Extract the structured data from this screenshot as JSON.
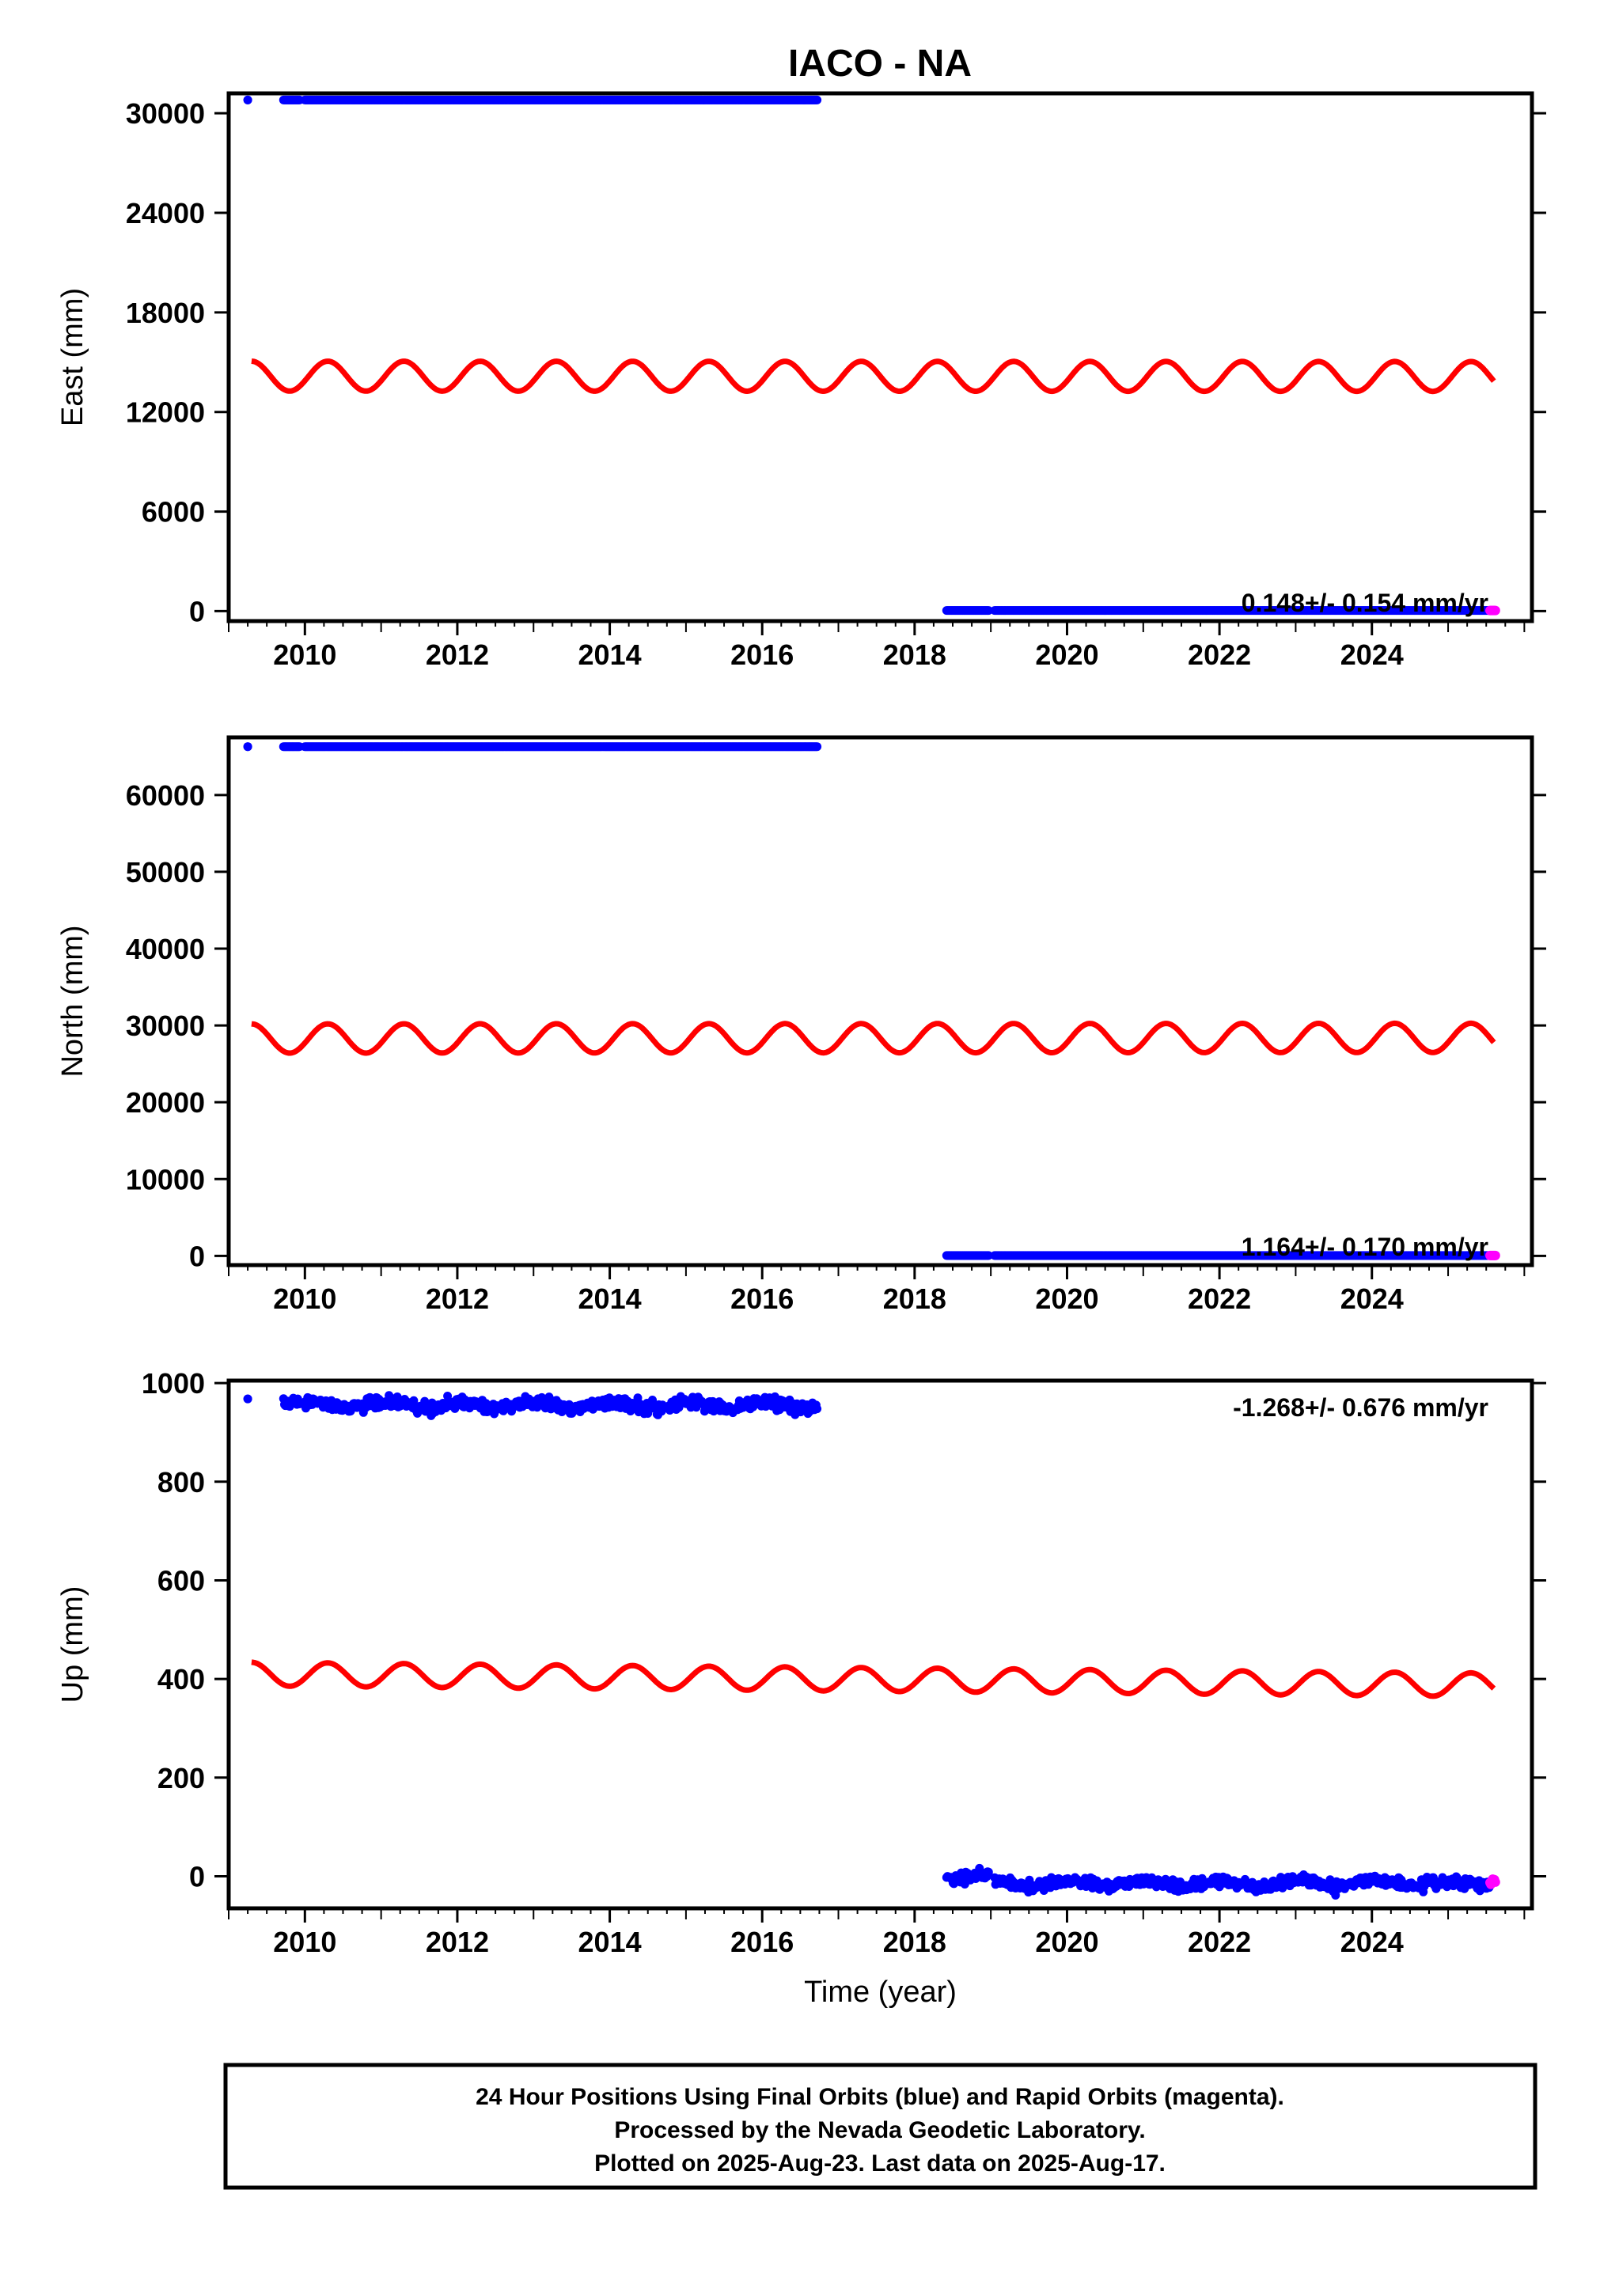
{
  "title": "IACO - NA",
  "colors": {
    "final": "#0000ff",
    "rapid": "#ff00ff",
    "model": "#ff0000",
    "frame": "#000000"
  },
  "footer": {
    "line1": "24 Hour Positions Using Final Orbits (blue) and Rapid Orbits (magenta).",
    "line2": "Processed by the Nevada Geodetic Laboratory.",
    "line3": "Plotted on 2025-Aug-23. Last data on 2025-Aug-17."
  },
  "chart_data": [
    {
      "type": "scatter",
      "ylabel": "East (mm)",
      "xlabel": "",
      "rate": "0.148+/- 0.154 mm/yr",
      "xlim": [
        2009.0,
        2026.1
      ],
      "ylim": [
        -600,
        31200
      ],
      "xticks": [
        "2010",
        "2012",
        "2014",
        "2016",
        "2018",
        "2020",
        "2022",
        "2024"
      ],
      "yticks": [
        "0",
        "6000",
        "12000",
        "18000",
        "24000",
        "30000"
      ],
      "final_segments": [
        {
          "x0": 2009.25,
          "x1": 2009.25,
          "y": 30800
        },
        {
          "x0": 2009.72,
          "x1": 2009.93,
          "y": 30800
        },
        {
          "x0": 2010.0,
          "x1": 2016.72,
          "y": 30800
        },
        {
          "x0": 2018.42,
          "x1": 2018.97,
          "y": 40
        },
        {
          "x0": 2019.05,
          "x1": 2025.55,
          "y": 40
        }
      ],
      "rapid_segment": {
        "x0": 2025.55,
        "x1": 2025.62,
        "y": 40
      },
      "model": {
        "x0": 2009.3,
        "x1": 2025.6,
        "mean_start": 14160,
        "mean_end": 14140,
        "amplitude": 900,
        "phase_deg": 90
      }
    },
    {
      "type": "scatter",
      "ylabel": "North (mm)",
      "xlabel": "",
      "rate": "1.164+/- 0.170 mm/yr",
      "xlim": [
        2009.0,
        2026.1
      ],
      "ylim": [
        -1200,
        67500
      ],
      "xticks": [
        "2010",
        "2012",
        "2014",
        "2016",
        "2018",
        "2020",
        "2022",
        "2024"
      ],
      "yticks": [
        "0",
        "10000",
        "20000",
        "30000",
        "40000",
        "50000",
        "60000"
      ],
      "final_segments": [
        {
          "x0": 2009.25,
          "x1": 2009.25,
          "y": 66300
        },
        {
          "x0": 2009.72,
          "x1": 2009.93,
          "y": 66300
        },
        {
          "x0": 2010.0,
          "x1": 2016.72,
          "y": 66300
        },
        {
          "x0": 2018.42,
          "x1": 2018.97,
          "y": 50
        },
        {
          "x0": 2019.05,
          "x1": 2025.55,
          "y": 50
        }
      ],
      "rapid_segment": {
        "x0": 2025.55,
        "x1": 2025.62,
        "y": 50
      },
      "model": {
        "x0": 2009.3,
        "x1": 2025.6,
        "mean_start": 28300,
        "mean_end": 28380,
        "amplitude": 1900,
        "phase_deg": 90
      }
    },
    {
      "type": "scatter",
      "ylabel": "Up (mm)",
      "xlabel": "Time (year)",
      "rate": "-1.268+/- 0.676 mm/yr",
      "xlim": [
        2009.0,
        2026.1
      ],
      "ylim": [
        -65,
        1005
      ],
      "xticks": [
        "2010",
        "2012",
        "2014",
        "2016",
        "2018",
        "2020",
        "2022",
        "2024"
      ],
      "yticks": [
        "0",
        "200",
        "400",
        "600",
        "800",
        "1000"
      ],
      "final_segments": [
        {
          "x0": 2009.25,
          "x1": 2009.25,
          "y": 968,
          "noise": 0
        },
        {
          "x0": 2009.72,
          "x1": 2009.93,
          "y": 960,
          "noise": 7
        },
        {
          "x0": 2010.0,
          "x1": 2016.72,
          "y": 955,
          "noise": 9
        },
        {
          "x0": 2018.42,
          "x1": 2018.97,
          "y": 0,
          "noise": 10
        },
        {
          "x0": 2019.05,
          "x1": 2025.55,
          "y": -15,
          "noise": 8
        }
      ],
      "rapid_segment": {
        "x0": 2025.55,
        "x1": 2025.62,
        "y": -12,
        "noise": 8
      },
      "model": {
        "x0": 2009.3,
        "x1": 2025.6,
        "mean_start": 410,
        "mean_end": 388,
        "amplitude": 24,
        "phase_deg": 90
      }
    }
  ]
}
